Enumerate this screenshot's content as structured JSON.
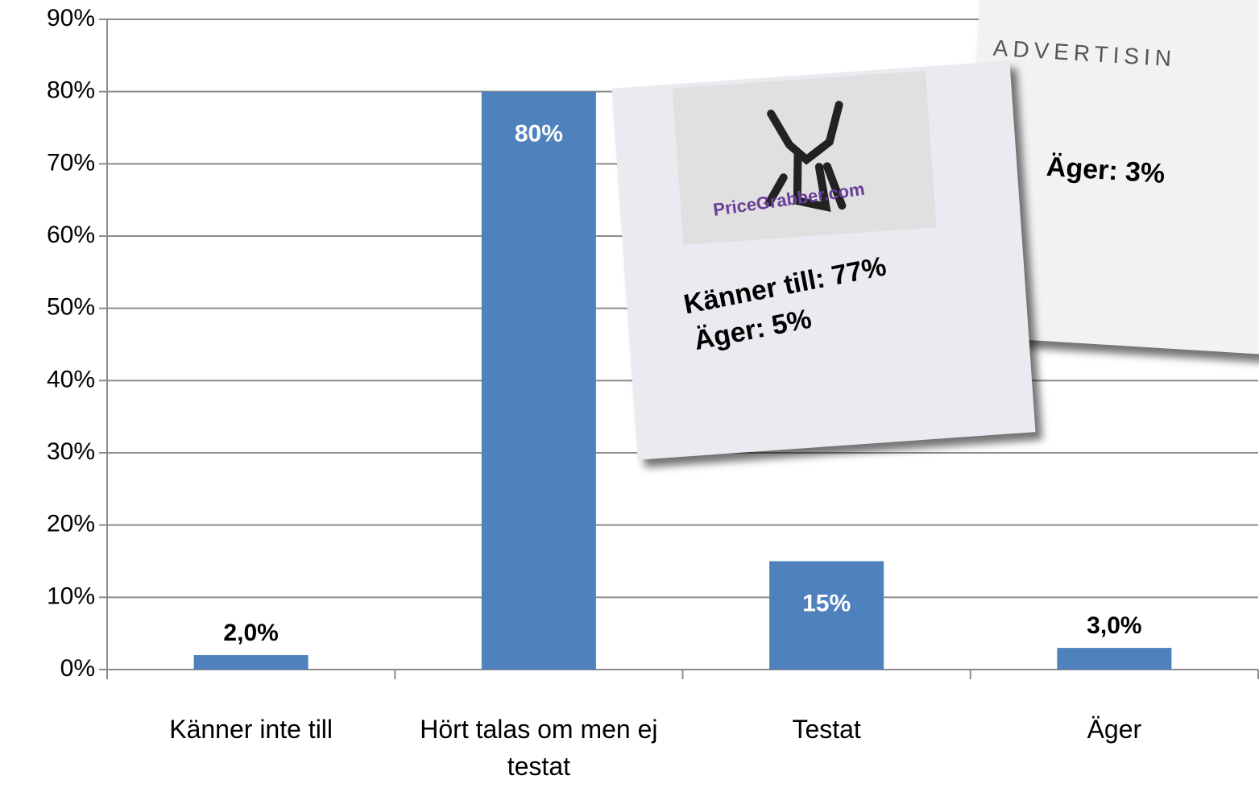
{
  "chart_data": {
    "type": "bar",
    "categories": [
      "Känner inte till",
      "Hört talas om men ej testat",
      "Testat",
      "Äger"
    ],
    "values": [
      2,
      80,
      15,
      3
    ],
    "value_labels": [
      "2,0%",
      "80%",
      "15%",
      "3,0%"
    ],
    "color": "#4f81bd",
    "ylim": [
      0,
      90
    ],
    "yticks": [
      {
        "value": 0,
        "label": "0%"
      },
      {
        "value": 10,
        "label": "10%"
      },
      {
        "value": 20,
        "label": "20%"
      },
      {
        "value": 30,
        "label": "30%"
      },
      {
        "value": 40,
        "label": "40%"
      },
      {
        "value": 50,
        "label": "50%"
      },
      {
        "value": 60,
        "label": "60%"
      },
      {
        "value": 70,
        "label": "70%"
      },
      {
        "value": 80,
        "label": "80%"
      },
      {
        "value": 90,
        "label": "90%"
      }
    ],
    "grid": true,
    "annotations": [
      "PriceGrabber.com",
      "Känner till: 77%",
      "Äger: 5%",
      "ADVERTISIN",
      "Äger: 3%"
    ]
  }
}
